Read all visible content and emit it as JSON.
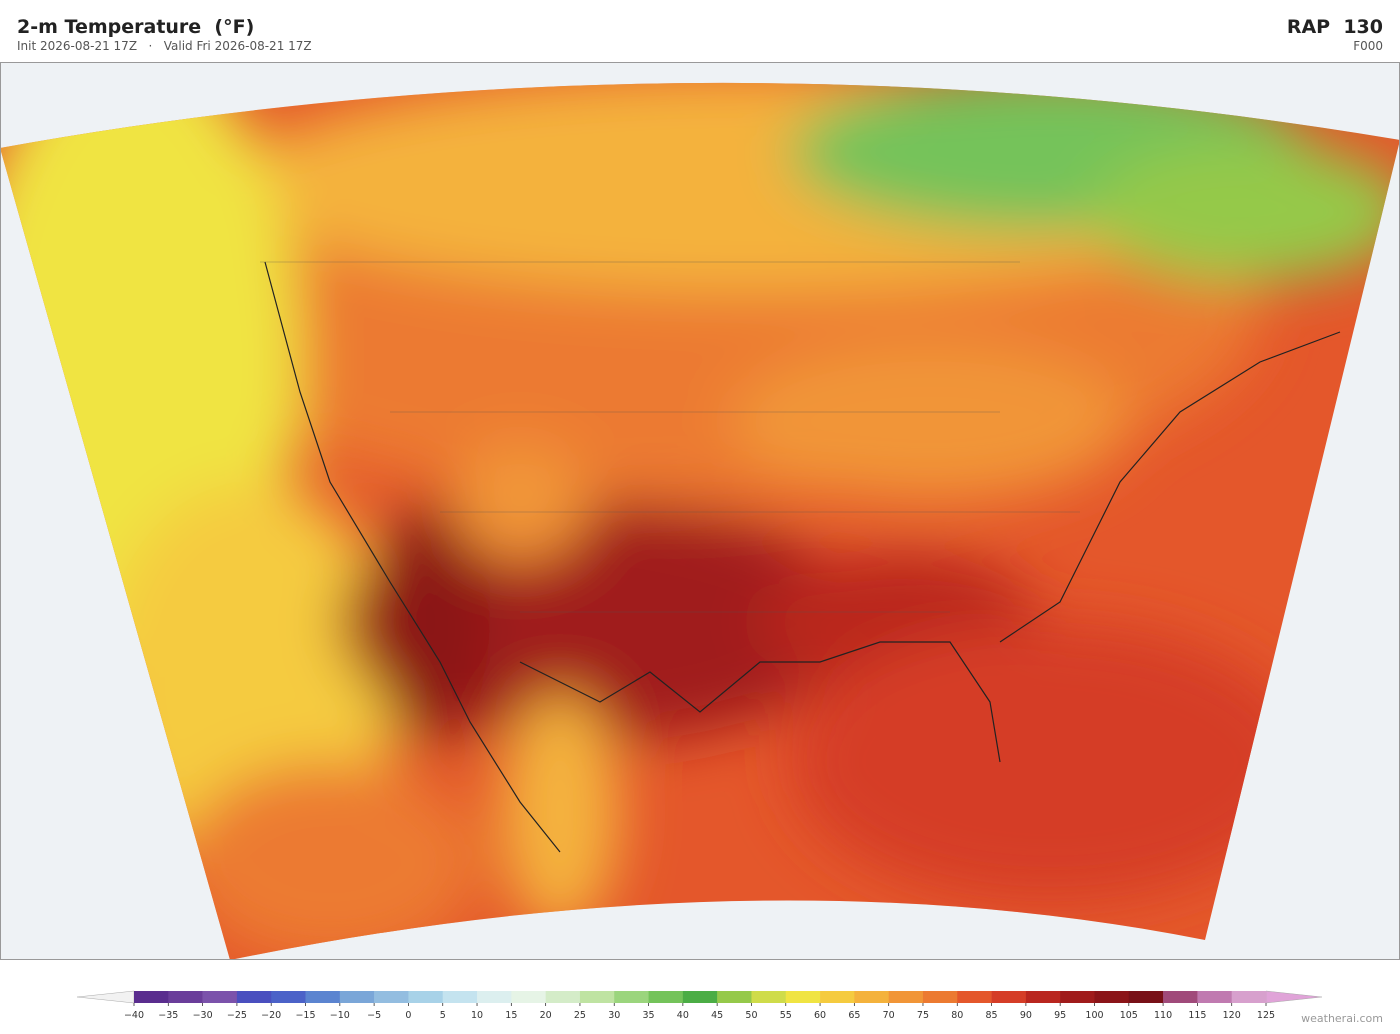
{
  "header": {
    "title": "2-m Temperature  (°F)",
    "subtitle": "Init 2026-08-21 17Z   ·   Valid Fri 2026-08-21 17Z",
    "model": "RAP  130",
    "forecast_hour": "F000"
  },
  "colorbar": {
    "ticks": [
      {
        "value": -40,
        "label": "−40"
      },
      {
        "value": -35,
        "label": "−35"
      },
      {
        "value": -30,
        "label": "−30"
      },
      {
        "value": -25,
        "label": "−25"
      },
      {
        "value": -20,
        "label": "−20"
      },
      {
        "value": -15,
        "label": "−15"
      },
      {
        "value": -10,
        "label": "−10"
      },
      {
        "value": -5,
        "label": "−5"
      },
      0,
      5,
      10,
      15,
      20,
      25,
      30,
      35,
      40,
      45,
      50,
      55,
      60,
      65,
      70,
      75,
      80,
      85,
      90,
      95,
      100,
      105,
      110,
      115,
      120,
      125
    ],
    "colors": [
      "#5a2d8e",
      "#6a3d9a",
      "#7b52ab",
      "#4a4fbf",
      "#4b62c8",
      "#5b84d0",
      "#7aa6d8",
      "#93bde0",
      "#a8d2e8",
      "#c4e3ef",
      "#dcefef",
      "#e6f4e6",
      "#d4ecc8",
      "#bfe3a2",
      "#9bd57d",
      "#74c35a",
      "#4bad45",
      "#95c94a",
      "#cfdc4a",
      "#f0e442",
      "#f5cb3f",
      "#f4b23c",
      "#f19537",
      "#ec7a31",
      "#e4572b",
      "#d53d27",
      "#b9261f",
      "#a01b1b",
      "#8b1418",
      "#781017",
      "#a04a7a",
      "#c07ab0",
      "#d7a0cd"
    ],
    "under_color": "#f2f2f2",
    "over_color": "#e0a3d8"
  },
  "footer": {
    "credit": "weatherai.com"
  }
}
